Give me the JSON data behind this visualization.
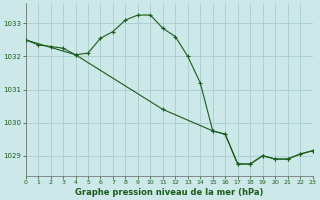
{
  "title": "Graphe pression niveau de la mer (hPa)",
  "background_color": "#cce8e8",
  "grid_color": "#aacccc",
  "line_color": "#1a5c1a",
  "xlim": [
    0,
    23
  ],
  "ylim": [
    1028.4,
    1033.6
  ],
  "yticks": [
    1029,
    1030,
    1031,
    1032,
    1033
  ],
  "xticks": [
    0,
    1,
    2,
    3,
    4,
    5,
    6,
    7,
    8,
    9,
    10,
    11,
    12,
    13,
    14,
    15,
    16,
    17,
    18,
    19,
    20,
    21,
    22,
    23
  ],
  "series1_x": [
    0,
    1,
    2,
    3,
    4,
    5,
    6,
    7,
    8,
    9,
    10,
    11,
    12,
    13,
    14,
    15,
    16,
    17,
    18,
    19,
    20,
    21,
    22,
    23
  ],
  "series1_y": [
    1032.5,
    1032.35,
    1032.3,
    1032.25,
    1032.05,
    1032.1,
    1032.55,
    1032.75,
    1033.1,
    1033.25,
    1033.25,
    1032.85,
    1032.6,
    1032.0,
    1031.2,
    1029.75,
    1029.65,
    1028.75,
    1028.75,
    1029.0,
    1028.9,
    1028.9,
    1029.05,
    1029.15
  ],
  "series2_x": [
    0,
    4,
    11,
    15,
    16,
    17,
    18,
    19,
    20,
    21,
    22,
    23
  ],
  "series2_y": [
    1032.5,
    1032.05,
    1030.4,
    1029.75,
    1029.65,
    1028.75,
    1028.75,
    1029.0,
    1028.9,
    1028.9,
    1029.05,
    1029.15
  ]
}
